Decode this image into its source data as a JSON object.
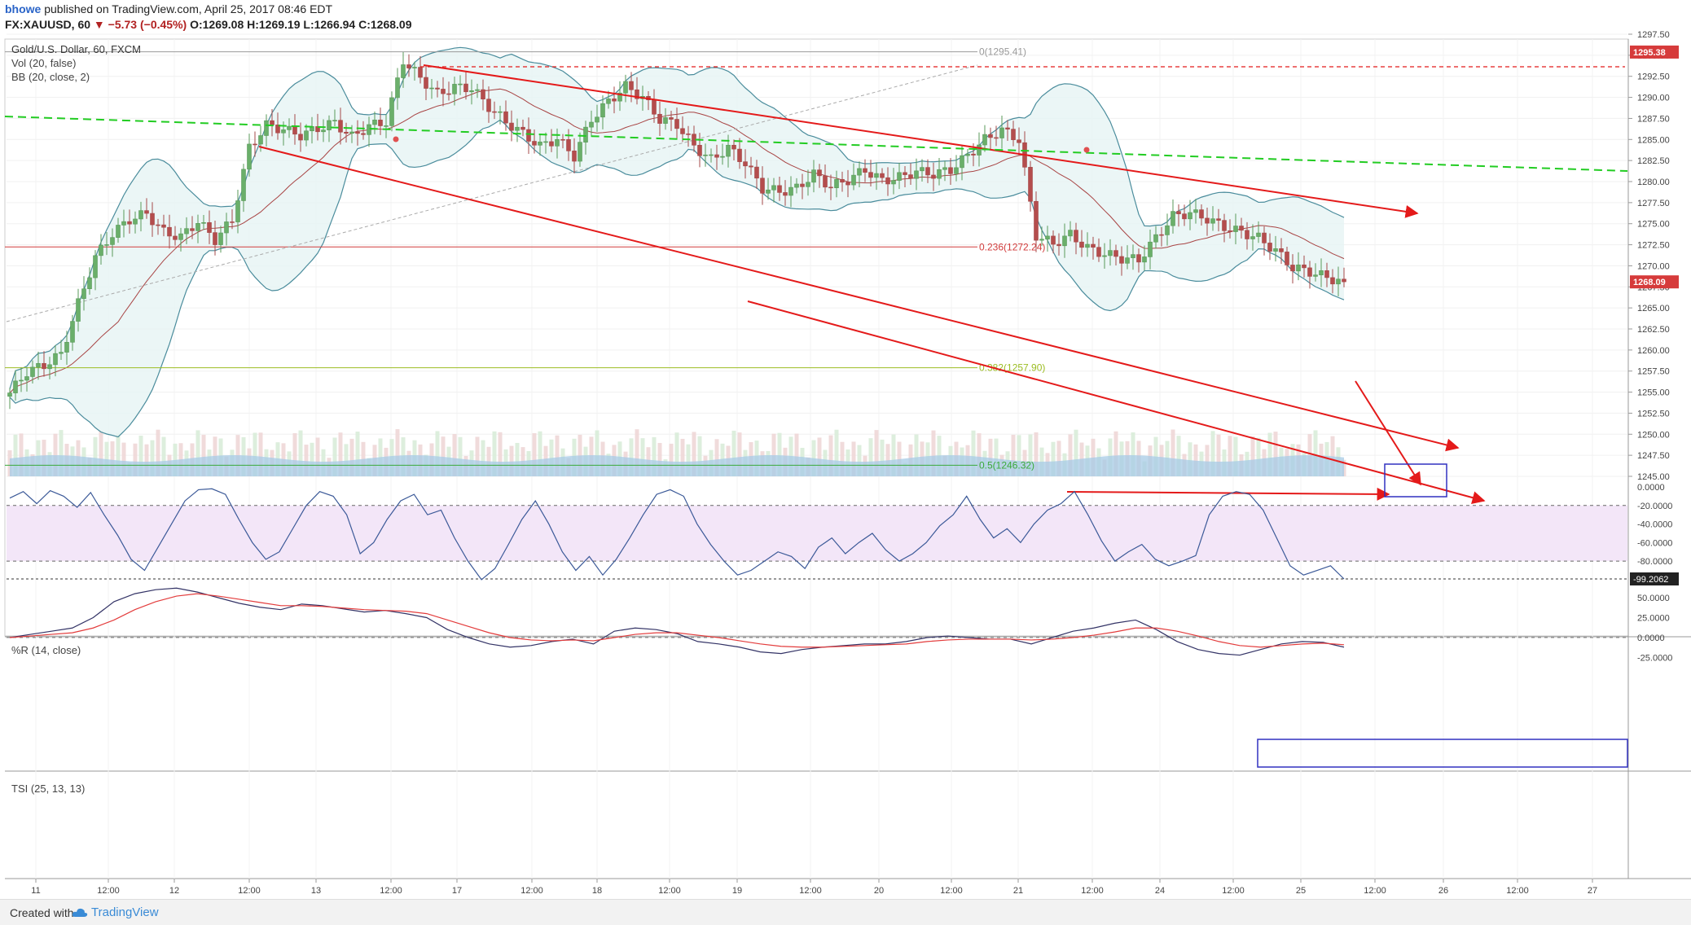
{
  "header": {
    "user": "bhowe",
    "published": "published on TradingView.com, April 25, 2017 08:46 EDT",
    "symbol": "FX:XAUUSD, 60",
    "change": "▼ −5.73 (−0.45%)",
    "ohlc": "O:1269.08 H:1269.19 L:1266.94 C:1268.09"
  },
  "legend": {
    "title": "Gold/U.S. Dollar, 60, FXCM",
    "vol": "Vol (20, false)",
    "bb": "BB (20, close, 2)",
    "wr": "%R (14, close)",
    "tsi": "TSI (25, 13, 13)"
  },
  "footer": {
    "created": "Created with",
    "brand": "TradingView"
  },
  "chart_data": [
    {
      "type": "candlestick",
      "title": "Gold/U.S. Dollar, 60, FXCM",
      "ylim": [
        1245.0,
        1297.5
      ],
      "y_ticks": [
        "1297.50",
        "1295.00",
        "1292.50",
        "1290.00",
        "1287.50",
        "1285.00",
        "1282.50",
        "1280.00",
        "1277.50",
        "1275.00",
        "1272.50",
        "1270.00",
        "1267.50",
        "1265.00",
        "1262.50",
        "1260.00",
        "1257.50",
        "1255.00",
        "1252.50",
        "1250.00",
        "1247.50",
        "1245.00"
      ],
      "x_ticks": [
        "11",
        "12:00",
        "12",
        "12:00",
        "13",
        "12:00",
        "17",
        "12:00",
        "18",
        "12:00",
        "19",
        "12:00",
        "20",
        "12:00",
        "21",
        "12:00",
        "24",
        "12:00",
        "25",
        "12:00",
        "26",
        "12:00",
        "27"
      ],
      "price_labels": [
        {
          "value": 1295.38,
          "text": "1295.38"
        },
        {
          "value": 1268.09,
          "text": "1268.09"
        }
      ],
      "fibonacci": [
        {
          "level": "0",
          "value": 1295.41,
          "text": "0(1295.41)",
          "color": "#999999"
        },
        {
          "level": "0.236",
          "value": 1272.24,
          "text": "0.236(1272.24)",
          "color": "#d23c3c"
        },
        {
          "level": "0.382",
          "value": 1257.9,
          "text": "0.382(1257.90)",
          "color": "#9cbd23"
        },
        {
          "level": "0.5",
          "value": 1246.32,
          "text": "0.5(1246.32)",
          "color": "#3aaa3a"
        }
      ],
      "close_path": [
        1254.9,
        1257.4,
        1258.2,
        1259.5,
        1265.5,
        1271.0,
        1273.8,
        1275.5,
        1276.2,
        1274.0,
        1273.4,
        1275.3,
        1273.1,
        1275.4,
        1284.0,
        1286.7,
        1286.2,
        1285.5,
        1286.3,
        1287.0,
        1285.3,
        1286.6,
        1287.1,
        1294.4,
        1292.3,
        1290.4,
        1291.2,
        1291.1,
        1288.9,
        1287.1,
        1285.7,
        1284.2,
        1285.1,
        1283.0,
        1287.4,
        1289.5,
        1291.3,
        1290.0,
        1287.4,
        1286.8,
        1284.2,
        1282.6,
        1284.0,
        1282.2,
        1279.2,
        1278.8,
        1279.2,
        1280.9,
        1279.4,
        1280.2,
        1281.4,
        1280.1,
        1280.5,
        1281.2,
        1280.9,
        1281.4,
        1283.1,
        1285.0,
        1286.1,
        1285.0,
        1273.6,
        1272.6,
        1273.7,
        1272.1,
        1271.4,
        1270.9,
        1270.7,
        1273.3,
        1275.9,
        1276.3,
        1275.6,
        1274.6,
        1274.0,
        1273.3,
        1271.8,
        1269.8,
        1269.3,
        1268.6,
        1268.1
      ],
      "volume_note": "histogram with 20-period volume average"
    },
    {
      "type": "line",
      "title": "%R (14, close)",
      "ylim": [
        -100,
        0
      ],
      "y_ticks": [
        "0.0000",
        "-20.0000",
        "-40.0000",
        "-60.0000",
        "-80.0000"
      ],
      "band": [
        -20,
        -80
      ],
      "last_value_label": "-99.2062",
      "values": [
        -12,
        -5,
        -18,
        -4,
        -10,
        -22,
        -6,
        -30,
        -52,
        -78,
        -90,
        -65,
        -40,
        -15,
        -3,
        -2,
        -8,
        -35,
        -60,
        -78,
        -70,
        -45,
        -20,
        -5,
        -10,
        -30,
        -72,
        -60,
        -35,
        -15,
        -8,
        -30,
        -25,
        -55,
        -80,
        -100,
        -88,
        -62,
        -35,
        -15,
        -40,
        -70,
        -90,
        -75,
        -95,
        -78,
        -55,
        -30,
        -8,
        -3,
        -10,
        -40,
        -62,
        -80,
        -95,
        -90,
        -80,
        -70,
        -75,
        -88,
        -65,
        -55,
        -72,
        -60,
        -50,
        -68,
        -80,
        -72,
        -60,
        -42,
        -30,
        -10,
        -35,
        -55,
        -45,
        -60,
        -40,
        -25,
        -18,
        -5,
        -30,
        -58,
        -80,
        -70,
        -62,
        -78,
        -85,
        -80,
        -74,
        -30,
        -10,
        -5,
        -8,
        -25,
        -55,
        -85,
        -95,
        -90,
        -85,
        -99.2
      ]
    },
    {
      "type": "line",
      "title": "TSI (25, 13, 13)",
      "ylim": [
        -25,
        50
      ],
      "y_ticks": [
        "50.0000",
        "25.0000",
        "0.0000",
        "-25.0000"
      ],
      "series": [
        {
          "color": "#333366",
          "values": [
            0,
            4,
            8,
            12,
            25,
            45,
            55,
            60,
            62,
            57,
            50,
            43,
            38,
            35,
            42,
            40,
            36,
            32,
            34,
            30,
            25,
            10,
            0,
            -8,
            -12,
            -10,
            -5,
            -2,
            -8,
            8,
            12,
            10,
            5,
            -5,
            -8,
            -12,
            -18,
            -20,
            -15,
            -12,
            -10,
            -8,
            -8,
            -5,
            0,
            2,
            0,
            -2,
            -2,
            -8,
            0,
            8,
            12,
            18,
            22,
            10,
            -5,
            -15,
            -20,
            -22,
            -15,
            -8,
            -5,
            -6,
            -12
          ]
        },
        {
          "color": "#e33c3c",
          "values": [
            0,
            2,
            4,
            6,
            12,
            22,
            35,
            45,
            52,
            55,
            52,
            48,
            44,
            40,
            40,
            39,
            37,
            35,
            34,
            33,
            30,
            22,
            14,
            6,
            0,
            -3,
            -4,
            -3,
            -4,
            0,
            4,
            6,
            6,
            3,
            0,
            -4,
            -8,
            -11,
            -12,
            -12,
            -11,
            -10,
            -9,
            -8,
            -5,
            -3,
            -2,
            -2,
            -2,
            -3,
            -2,
            0,
            3,
            7,
            12,
            12,
            8,
            2,
            -5,
            -10,
            -12,
            -10,
            -8,
            -7,
            -9
          ]
        }
      ]
    }
  ],
  "annotations": [
    {
      "kind": "channel-line",
      "color": "#e41a1a"
    },
    {
      "kind": "trend-line-dashed",
      "color": "#22cc22"
    },
    {
      "kind": "target-box",
      "color": "#3030c0"
    }
  ]
}
